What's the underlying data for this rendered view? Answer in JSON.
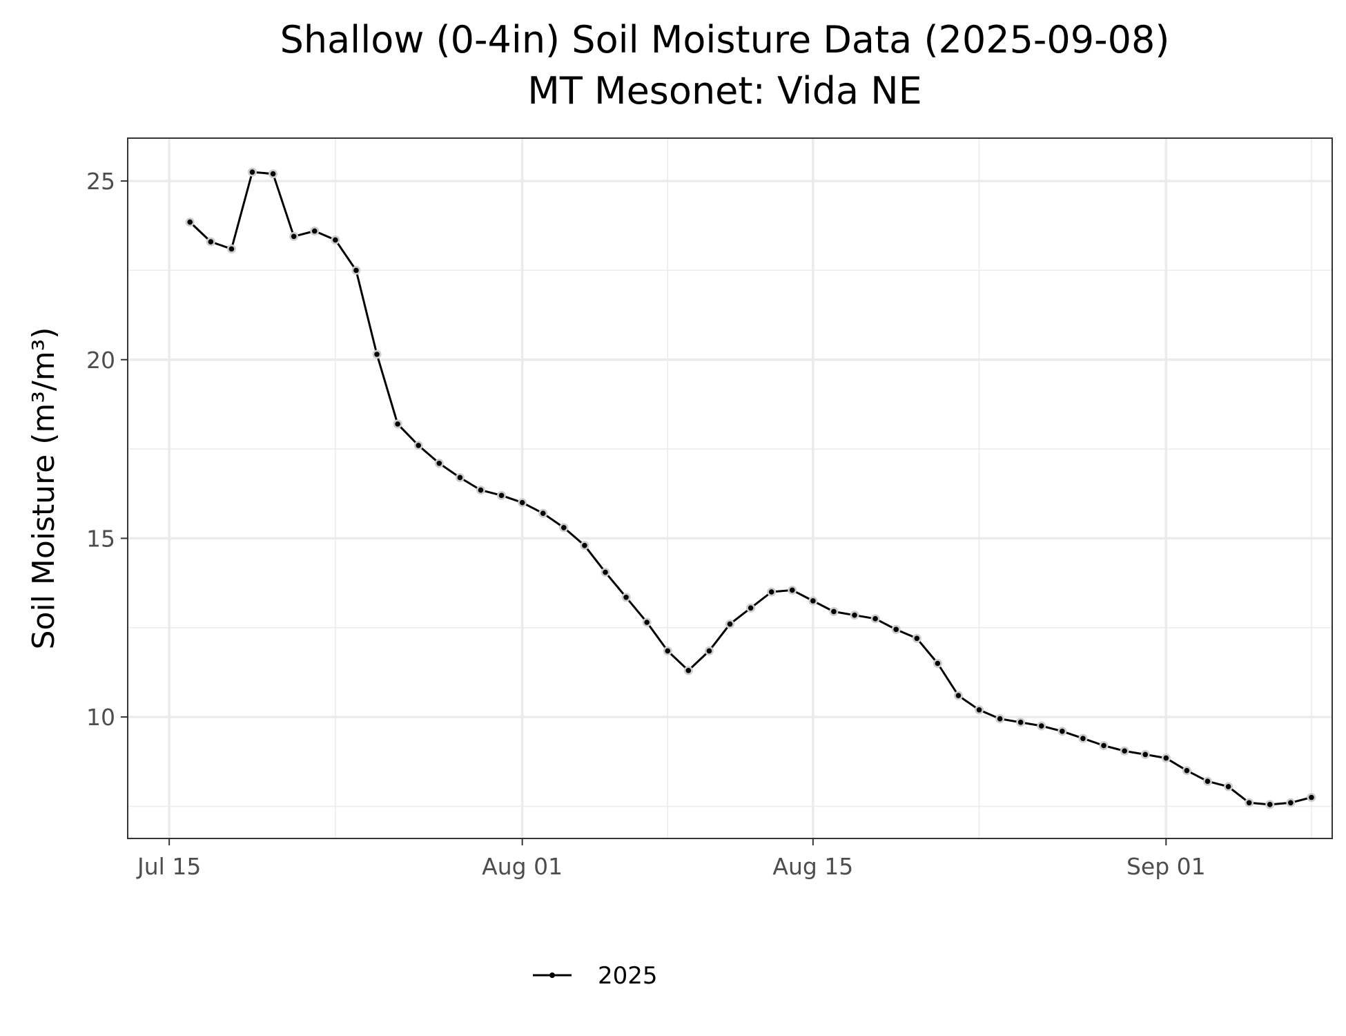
{
  "title_line1": "Shallow (0-4in) Soil Moisture Data (2025-09-08)",
  "title_line2": "MT Mesonet: Vida NE",
  "chart_data": {
    "type": "line",
    "title": "Shallow (0-4in) Soil Moisture Data (2025-09-08)",
    "subtitle": "MT Mesonet: Vida NE",
    "xlabel": "",
    "ylabel": "Soil Moisture (m³/m³)",
    "xlim": [
      "2025-07-13",
      "2025-09-09"
    ],
    "ylim": [
      6.6,
      26.2
    ],
    "grid": true,
    "legend": {
      "position": "bottom",
      "entries": [
        "2025"
      ]
    },
    "x_ticks": [
      {
        "date": "2025-07-15",
        "label": "Jul 15"
      },
      {
        "date": "2025-08-01",
        "label": "Aug 01"
      },
      {
        "date": "2025-08-15",
        "label": "Aug 15"
      },
      {
        "date": "2025-09-01",
        "label": "Sep 01"
      }
    ],
    "x_minor_ticks": [
      "2025-07-23",
      "2025-08-08",
      "2025-08-23",
      "2025-09-08"
    ],
    "y_ticks": [
      10,
      15,
      20,
      25
    ],
    "y_minor_ticks": [
      7.5,
      12.5,
      17.5,
      22.5
    ],
    "series": [
      {
        "name": "2025",
        "color": "#000000",
        "marker_color": "#000000",
        "marker_halo": "#cccccc",
        "points": [
          [
            "2025-07-16",
            23.85
          ],
          [
            "2025-07-17",
            23.3
          ],
          [
            "2025-07-18",
            23.1
          ],
          [
            "2025-07-19",
            25.25
          ],
          [
            "2025-07-20",
            25.2
          ],
          [
            "2025-07-21",
            23.45
          ],
          [
            "2025-07-22",
            23.6
          ],
          [
            "2025-07-23",
            23.35
          ],
          [
            "2025-07-24",
            22.5
          ],
          [
            "2025-07-25",
            20.15
          ],
          [
            "2025-07-26",
            18.2
          ],
          [
            "2025-07-27",
            17.6
          ],
          [
            "2025-07-28",
            17.1
          ],
          [
            "2025-07-29",
            16.7
          ],
          [
            "2025-07-30",
            16.35
          ],
          [
            "2025-07-31",
            16.2
          ],
          [
            "2025-08-01",
            16.0
          ],
          [
            "2025-08-02",
            15.7
          ],
          [
            "2025-08-03",
            15.3
          ],
          [
            "2025-08-04",
            14.8
          ],
          [
            "2025-08-05",
            14.05
          ],
          [
            "2025-08-06",
            13.35
          ],
          [
            "2025-08-07",
            12.65
          ],
          [
            "2025-08-08",
            11.85
          ],
          [
            "2025-08-09",
            11.3
          ],
          [
            "2025-08-10",
            11.85
          ],
          [
            "2025-08-11",
            12.6
          ],
          [
            "2025-08-12",
            13.05
          ],
          [
            "2025-08-13",
            13.5
          ],
          [
            "2025-08-14",
            13.55
          ],
          [
            "2025-08-15",
            13.25
          ],
          [
            "2025-08-16",
            12.95
          ],
          [
            "2025-08-17",
            12.85
          ],
          [
            "2025-08-18",
            12.75
          ],
          [
            "2025-08-19",
            12.45
          ],
          [
            "2025-08-20",
            12.2
          ],
          [
            "2025-08-21",
            11.5
          ],
          [
            "2025-08-22",
            10.6
          ],
          [
            "2025-08-23",
            10.2
          ],
          [
            "2025-08-24",
            9.95
          ],
          [
            "2025-08-25",
            9.85
          ],
          [
            "2025-08-26",
            9.75
          ],
          [
            "2025-08-27",
            9.6
          ],
          [
            "2025-08-28",
            9.4
          ],
          [
            "2025-08-29",
            9.2
          ],
          [
            "2025-08-30",
            9.05
          ],
          [
            "2025-08-31",
            8.95
          ],
          [
            "2025-09-01",
            8.85
          ],
          [
            "2025-09-02",
            8.5
          ],
          [
            "2025-09-03",
            8.2
          ],
          [
            "2025-09-04",
            8.05
          ],
          [
            "2025-09-05",
            7.6
          ],
          [
            "2025-09-06",
            7.55
          ],
          [
            "2025-09-07",
            7.6
          ],
          [
            "2025-09-08",
            7.75
          ]
        ]
      }
    ]
  }
}
